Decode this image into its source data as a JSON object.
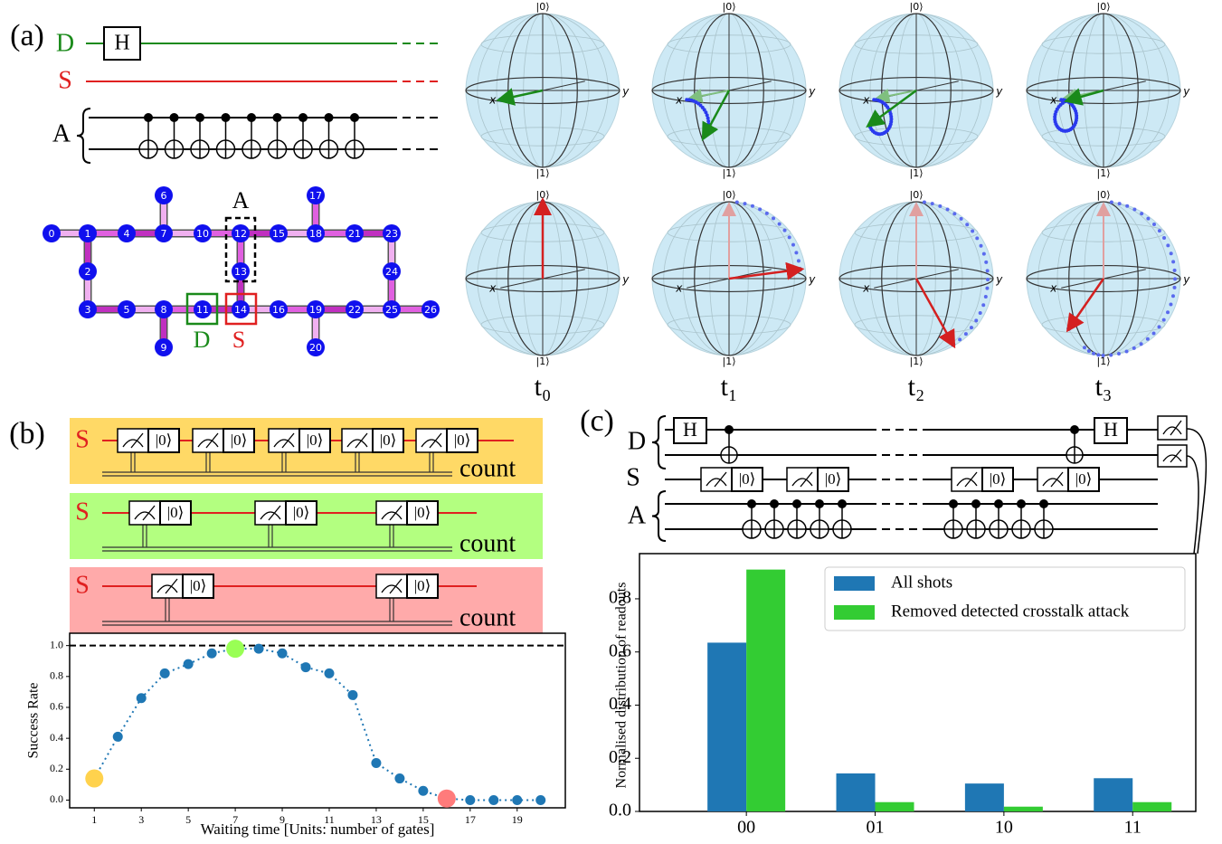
{
  "panel_labels": [
    "(a)",
    "(b)",
    "(c)"
  ],
  "circuit_a": {
    "qubits": [
      "D",
      "S",
      "A"
    ],
    "gate": "H"
  },
  "lattice": {
    "nodes": [
      "0",
      "1",
      "2",
      "3",
      "4",
      "5",
      "6",
      "7",
      "8",
      "9",
      "10",
      "11",
      "12",
      "13",
      "14",
      "15",
      "16",
      "17",
      "18",
      "19",
      "20",
      "21",
      "22",
      "23",
      "24",
      "25",
      "26"
    ],
    "labels": [
      "A",
      "D",
      "S"
    ]
  },
  "bloch": {
    "ket0": "|0⟩",
    "ket1": "|1⟩",
    "x_axis": "x",
    "y_axis": "y",
    "times": [
      "t₀",
      "t₁",
      "t₂",
      "t₃"
    ]
  },
  "circuit_b": {
    "qubit": "S",
    "reset": "|0⟩",
    "register": "count"
  },
  "circuit_c": {
    "qubits": [
      "D",
      "S",
      "A"
    ],
    "gate": "H",
    "reset": "|0⟩"
  },
  "chart_data": [
    {
      "type": "line",
      "xlabel": "Waiting time [Units: number of gates]",
      "ylabel": "Success Rate",
      "x": [
        1,
        2,
        3,
        4,
        5,
        6,
        7,
        8,
        9,
        10,
        11,
        12,
        13,
        14,
        15,
        16,
        17,
        18,
        19,
        20
      ],
      "values": [
        0.14,
        0.41,
        0.66,
        0.82,
        0.88,
        0.95,
        0.98,
        0.98,
        0.95,
        0.86,
        0.82,
        0.68,
        0.24,
        0.14,
        0.06,
        0.01,
        0.0,
        0.0,
        0.0,
        0.0
      ],
      "color": "#1f77b4",
      "line_style": "dotted",
      "xlim": [
        -0.05,
        21.05
      ],
      "ylim": [
        -0.05,
        1.08
      ],
      "xticks": [
        1,
        3,
        5,
        7,
        9,
        11,
        13,
        15,
        17,
        19
      ],
      "yticks": [
        {
          "value": 0,
          "label": "0.0"
        },
        {
          "value": 0.2,
          "label": "0.2"
        },
        {
          "value": 0.4,
          "label": "0.4"
        },
        {
          "value": 0.6,
          "label": "0.6"
        },
        {
          "value": 0.8,
          "label": "0.8"
        },
        {
          "value": 1,
          "label": "1.0"
        }
      ],
      "reference_line": 1,
      "highlight": [
        {
          "x": 1,
          "color": "#ffd24d"
        },
        {
          "x": 7,
          "color": "#99ff55"
        },
        {
          "x": 16,
          "color": "#ff7b7b"
        }
      ]
    },
    {
      "type": "bar",
      "ylabel": "Normalised distribution of readouts",
      "categories": [
        "00",
        "01",
        "10",
        "11"
      ],
      "series": [
        {
          "name": "All shots",
          "color": "#1f77b4",
          "values": [
            0.635,
            0.143,
            0.105,
            0.125
          ]
        },
        {
          "name": "Removed detected crosstalk attack",
          "color": "#33cc33",
          "values": [
            0.91,
            0.035,
            0.018,
            0.035
          ]
        }
      ],
      "ylim": [
        0,
        0.97
      ],
      "yticks": [
        {
          "value": 0,
          "label": "0.0"
        },
        {
          "value": 0.2,
          "label": "0.2"
        },
        {
          "value": 0.4,
          "label": "0.4"
        },
        {
          "value": 0.6,
          "label": "0.6"
        },
        {
          "value": 0.8,
          "label": "0.8"
        }
      ],
      "legend": "upper right"
    }
  ]
}
